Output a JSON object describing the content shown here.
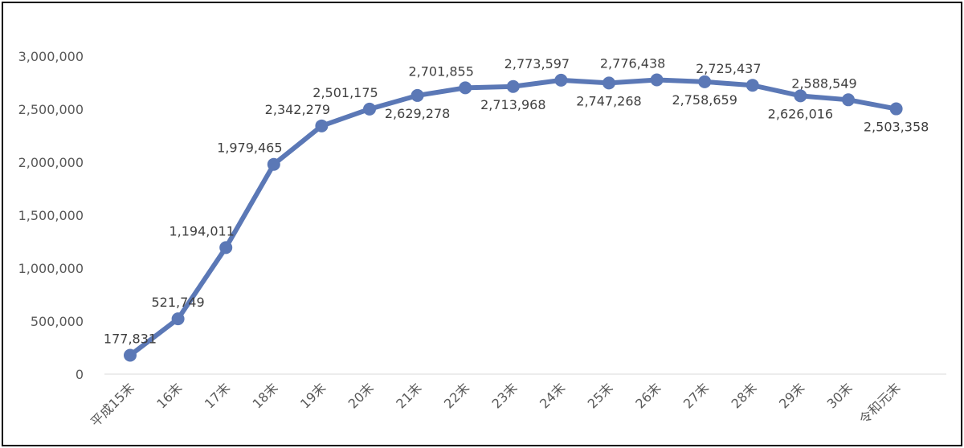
{
  "chart_data": {
    "type": "line",
    "categories": [
      "平成15末",
      "16末",
      "17末",
      "18末",
      "19末",
      "20末",
      "21末",
      "22末",
      "23末",
      "24末",
      "25末",
      "26末",
      "27末",
      "28末",
      "29末",
      "30末",
      "令和元末"
    ],
    "series": [
      {
        "values": [
          177831,
          521749,
          1194011,
          1979465,
          2342279,
          2501175,
          2629278,
          2701855,
          2713968,
          2773597,
          2747268,
          2776438,
          2758659,
          2725437,
          2626016,
          2588549,
          2503358
        ]
      }
    ],
    "data_labels": [
      "177,831",
      "521,749",
      "1,194,011",
      "1,979,465",
      "2,342,279",
      "2,501,175",
      "2,629,278",
      "2,701,855",
      "2,713,968",
      "2,773,597",
      "2,747,268",
      "2,776,438",
      "2,758,659",
      "2,725,437",
      "2,626,016",
      "2,588,549",
      "2,503,358"
    ],
    "ytick_labels": [
      "0",
      "500,000",
      "1,000,000",
      "1,500,000",
      "2,000,000",
      "2,500,000",
      "3,000,000"
    ],
    "ylim": [
      0,
      3000000
    ],
    "grid": false,
    "legend": "none",
    "title": "",
    "xlabel": "",
    "ylabel": "",
    "color": "#5b78b6"
  }
}
